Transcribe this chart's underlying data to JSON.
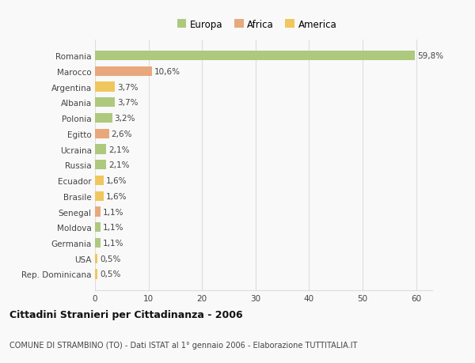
{
  "countries": [
    "Romania",
    "Marocco",
    "Argentina",
    "Albania",
    "Polonia",
    "Egitto",
    "Ucraina",
    "Russia",
    "Ecuador",
    "Brasile",
    "Senegal",
    "Moldova",
    "Germania",
    "USA",
    "Rep. Dominicana"
  ],
  "values": [
    59.8,
    10.6,
    3.7,
    3.7,
    3.2,
    2.6,
    2.1,
    2.1,
    1.6,
    1.6,
    1.1,
    1.1,
    1.1,
    0.5,
    0.5
  ],
  "labels": [
    "59,8%",
    "10,6%",
    "3,7%",
    "3,7%",
    "3,2%",
    "2,6%",
    "2,1%",
    "2,1%",
    "1,6%",
    "1,6%",
    "1,1%",
    "1,1%",
    "1,1%",
    "0,5%",
    "0,5%"
  ],
  "continents": [
    "Europa",
    "Africa",
    "America",
    "Europa",
    "Europa",
    "Africa",
    "Europa",
    "Europa",
    "America",
    "America",
    "Africa",
    "Europa",
    "Europa",
    "America",
    "America"
  ],
  "colors": {
    "Europa": "#adc97e",
    "Africa": "#e8a87c",
    "America": "#f0c75e"
  },
  "title1": "Cittadini Stranieri per Cittadinanza - 2006",
  "title2": "COMUNE DI STRAMBINO (TO) - Dati ISTAT al 1° gennaio 2006 - Elaborazione TUTTITALIA.IT",
  "xlim": [
    0,
    63
  ],
  "xticks": [
    0,
    10,
    20,
    30,
    40,
    50,
    60
  ],
  "background_color": "#f9f9f9",
  "grid_color": "#dddddd"
}
